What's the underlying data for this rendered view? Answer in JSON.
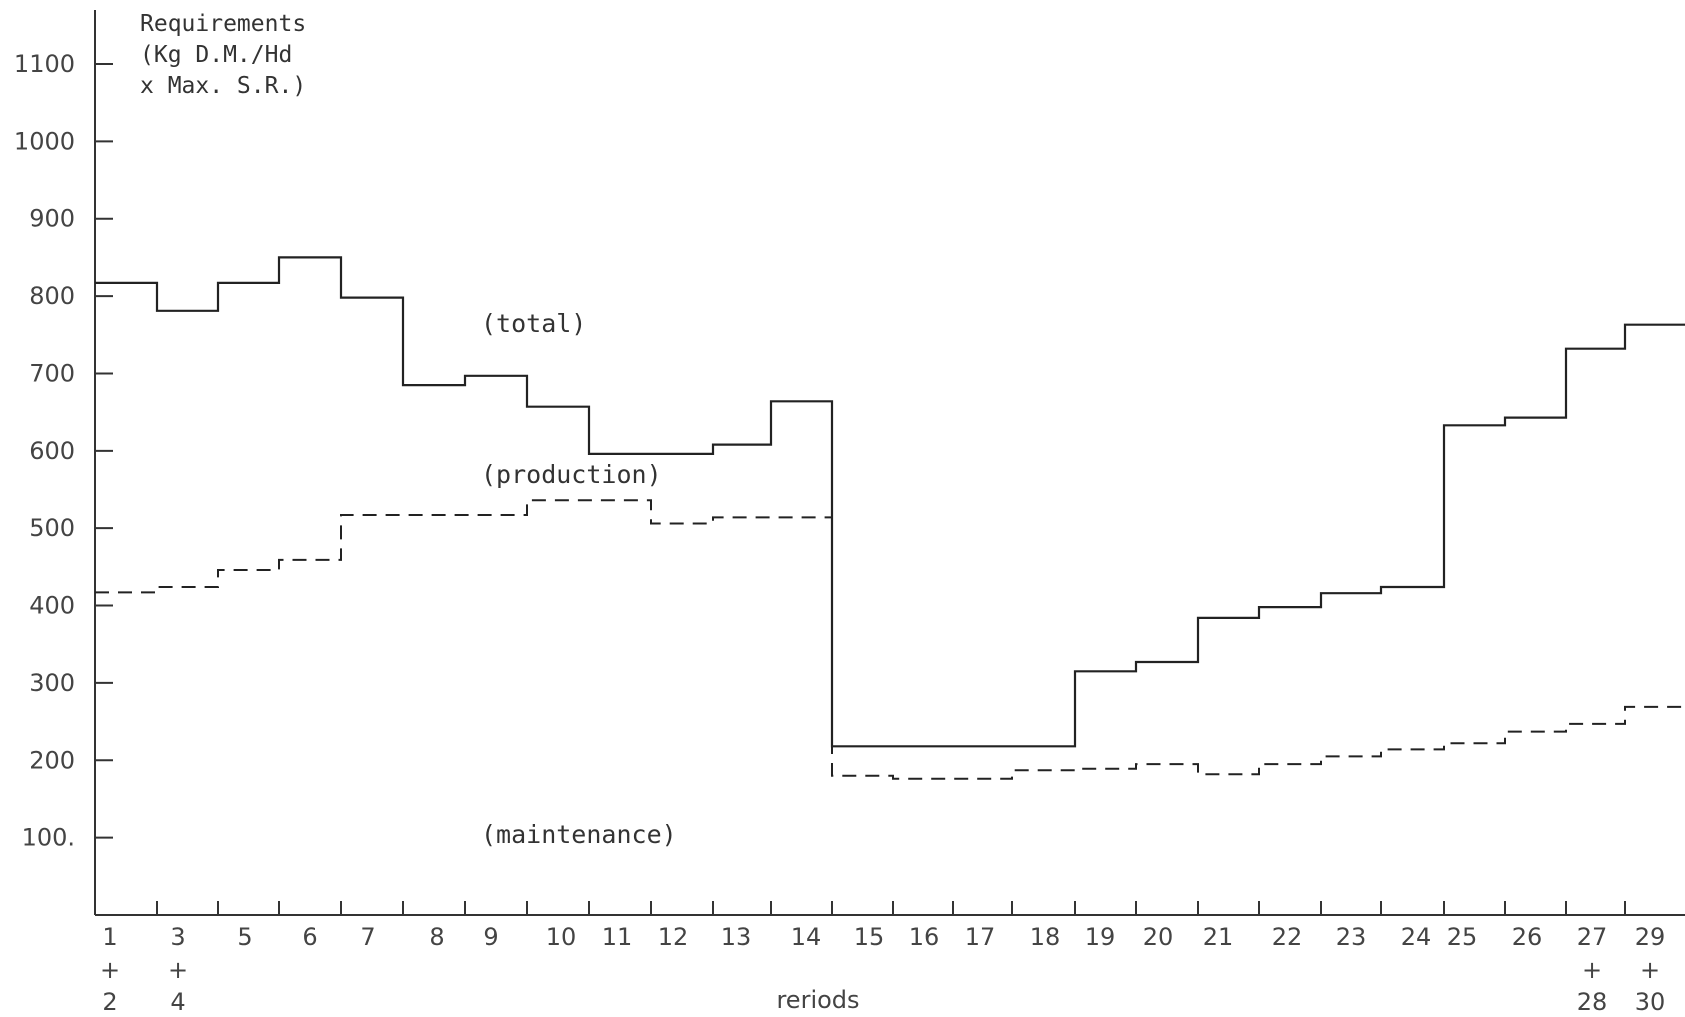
{
  "chart_data": {
    "type": "line",
    "step": true,
    "ylabel_lines": [
      "Requirements",
      "(Kg D.M./Hd",
      "x Max. S.R.)"
    ],
    "xlabel": "reriods",
    "yticks": [
      {
        "value": 100,
        "label": "100."
      },
      {
        "value": 200,
        "label": "200"
      },
      {
        "value": 300,
        "label": "300"
      },
      {
        "value": 400,
        "label": "400"
      },
      {
        "value": 500,
        "label": "500"
      },
      {
        "value": 600,
        "label": "600"
      },
      {
        "value": 700,
        "label": "700"
      },
      {
        "value": 800,
        "label": "800"
      },
      {
        "value": 900,
        "label": "900"
      },
      {
        "value": 1000,
        "label": "1000"
      },
      {
        "value": 1100,
        "label": "1100"
      }
    ],
    "ylim": [
      0,
      1100
    ],
    "categories": [
      "1+2",
      "3+4",
      "5",
      "6",
      "7",
      "8",
      "9",
      "10",
      "11",
      "12",
      "13",
      "14",
      "15",
      "16",
      "17",
      "18",
      "19",
      "20",
      "21",
      "22",
      "23",
      "24",
      "25",
      "26",
      "27+28",
      "29+30"
    ],
    "xtick_labels": [
      {
        "main": "1",
        "plus": "+",
        "sub": "2"
      },
      {
        "main": "3",
        "plus": "+",
        "sub": "4"
      },
      {
        "main": "5"
      },
      {
        "main": "6"
      },
      {
        "main": "7"
      },
      {
        "main": "8"
      },
      {
        "main": "9"
      },
      {
        "main": "10"
      },
      {
        "main": "11"
      },
      {
        "main": "12"
      },
      {
        "main": "13"
      },
      {
        "main": "14"
      },
      {
        "main": "15"
      },
      {
        "main": "16"
      },
      {
        "main": "17"
      },
      {
        "main": "18"
      },
      {
        "main": "19"
      },
      {
        "main": "20"
      },
      {
        "main": "21"
      },
      {
        "main": "22"
      },
      {
        "main": "23"
      },
      {
        "main": "24"
      },
      {
        "main": "25"
      },
      {
        "main": "26"
      },
      {
        "main": "27",
        "plus": "+",
        "sub": "28"
      },
      {
        "main": "29",
        "plus": "+",
        "sub": "30"
      }
    ],
    "series": [
      {
        "name": "total",
        "style": "solid",
        "values": [
          817,
          781,
          817,
          850,
          798,
          685,
          697,
          657,
          596,
          596,
          608,
          664,
          218,
          218,
          218,
          218,
          315,
          327,
          384,
          398,
          416,
          424,
          633,
          643,
          732,
          763
        ]
      },
      {
        "name": "maintenance",
        "style": "dashed",
        "values": [
          417,
          424,
          446,
          459,
          517,
          517,
          517,
          536,
          536,
          506,
          514,
          514,
          180,
          176,
          176,
          187,
          189,
          195,
          182,
          195,
          205,
          214,
          222,
          237,
          247,
          269
        ]
      }
    ],
    "annotations": [
      {
        "text": "(total)"
      },
      {
        "text": "(production)"
      },
      {
        "text": "(maintenance)"
      }
    ],
    "grid": false
  }
}
